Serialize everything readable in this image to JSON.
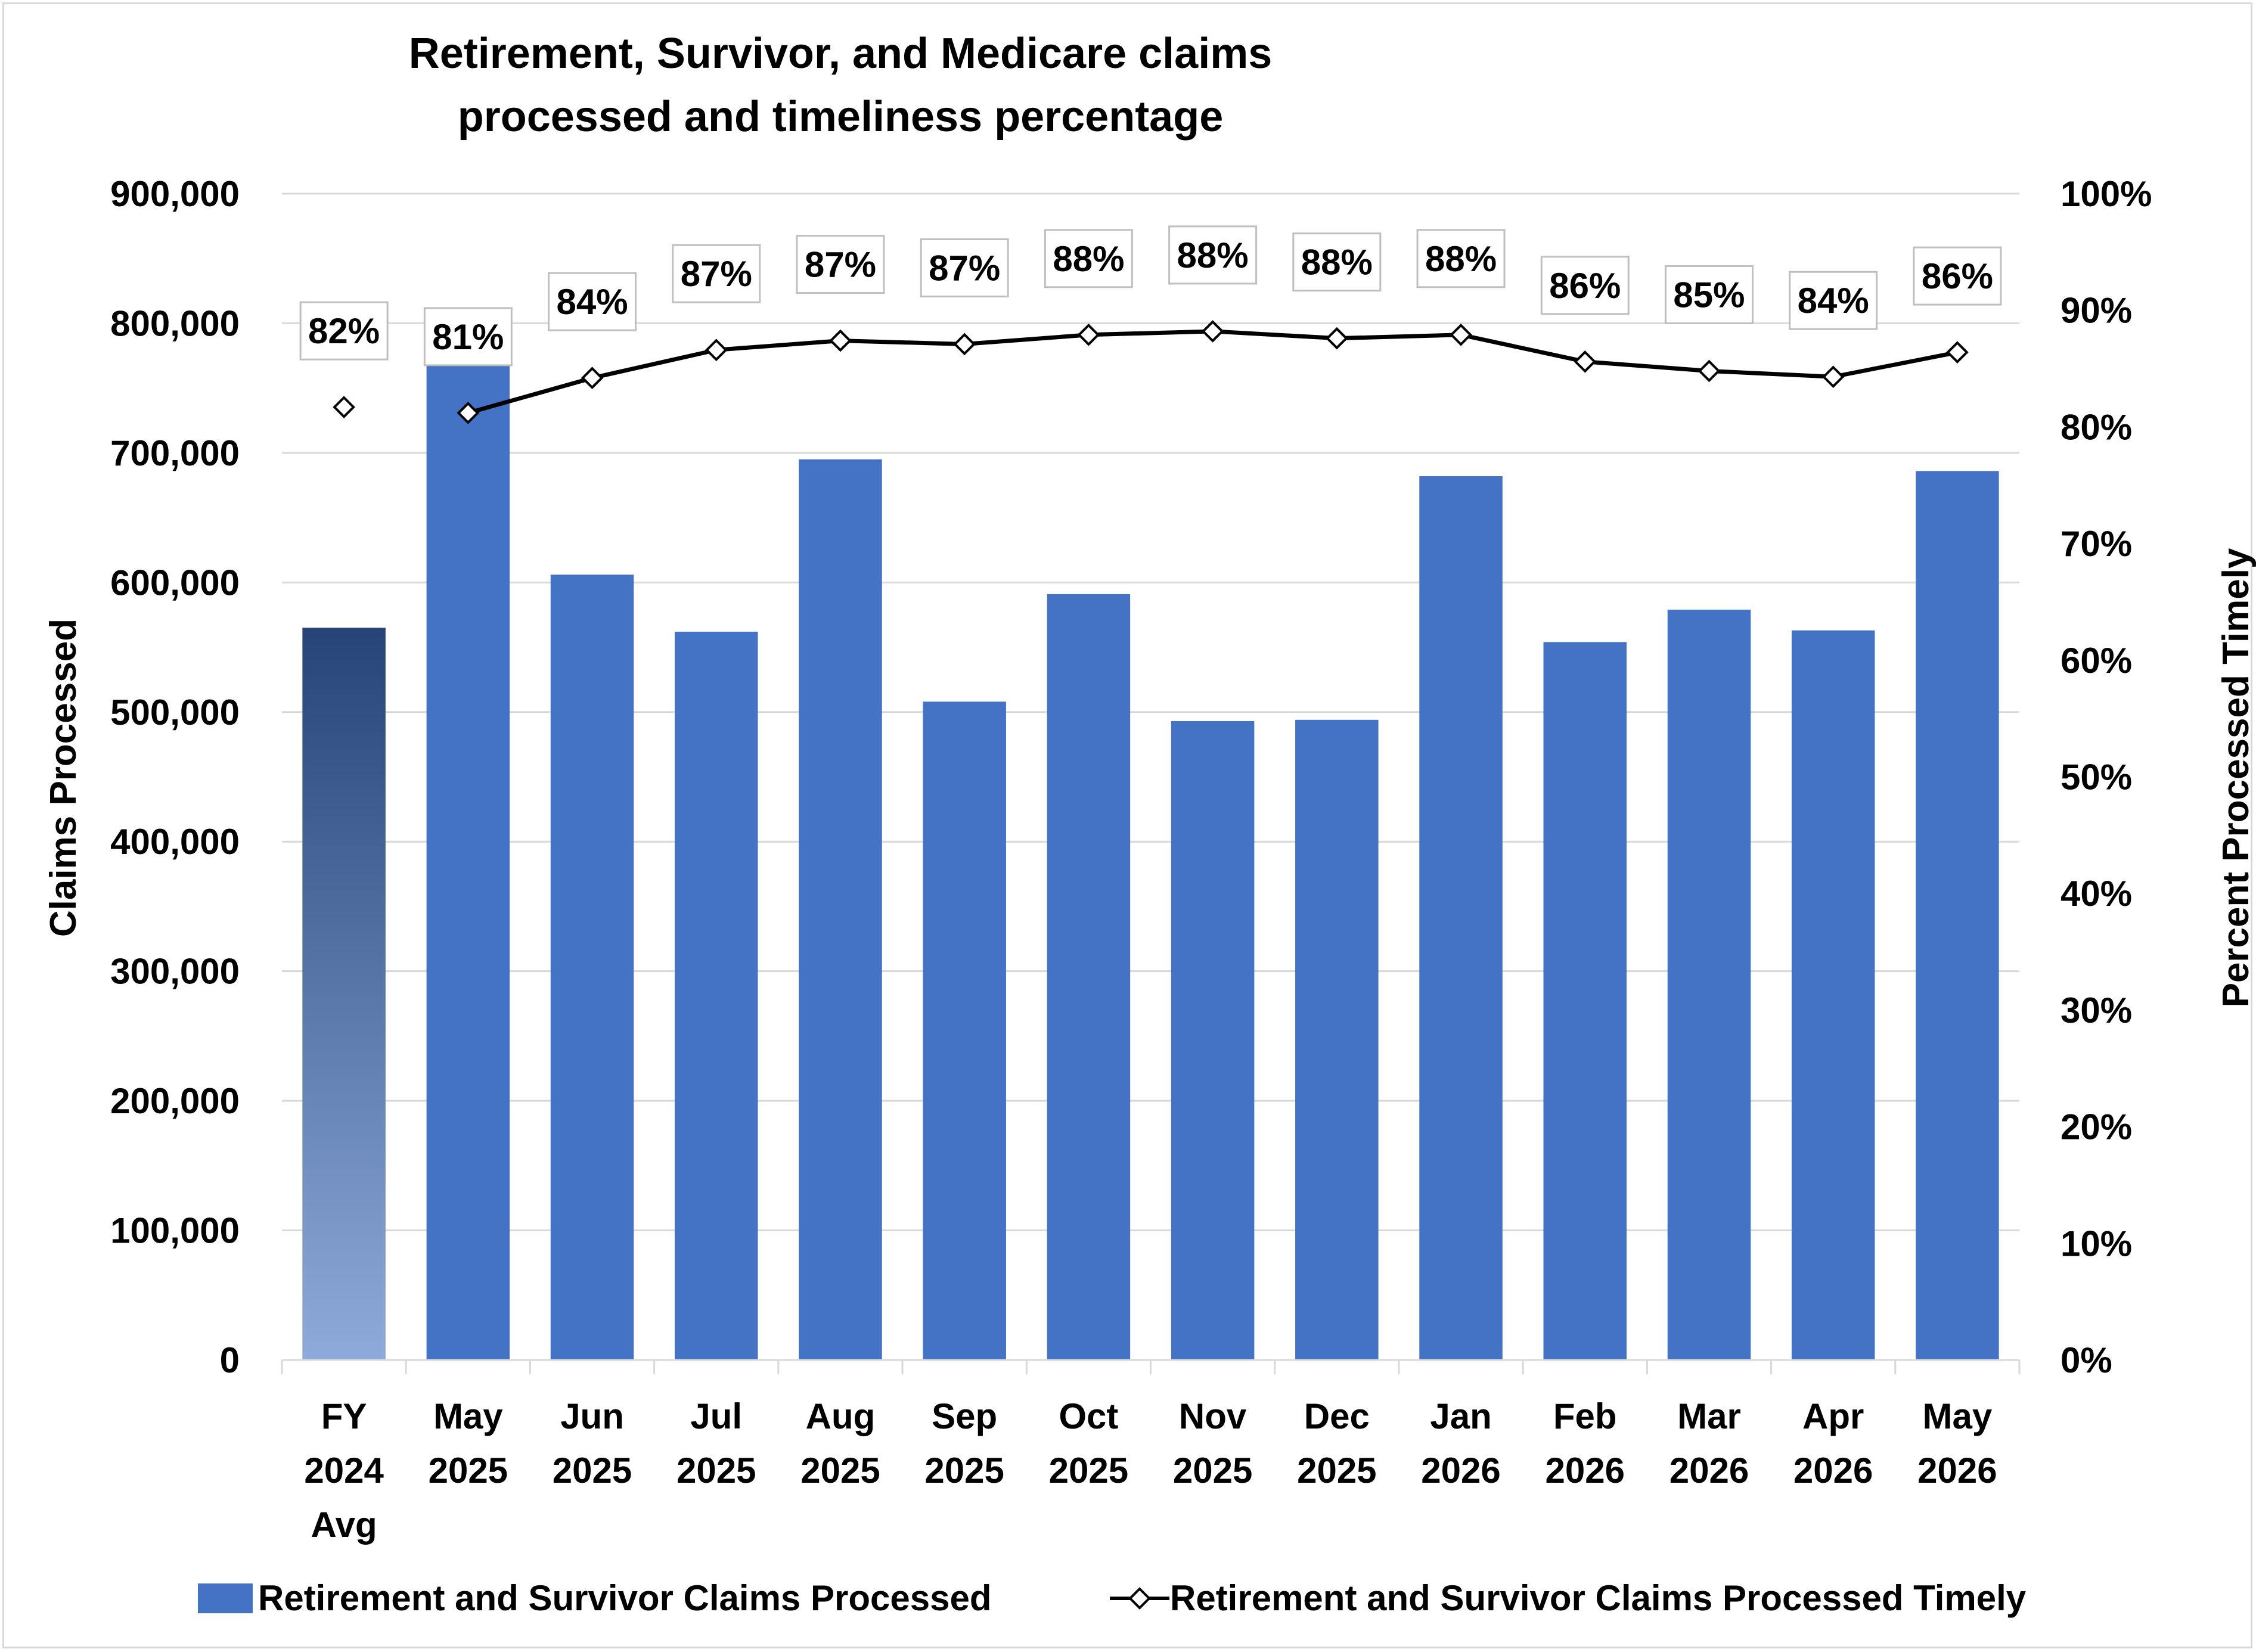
{
  "chart_data": {
    "type": "bar",
    "title": [
      "Retirement, Survivor, and Medicare claims",
      "processed and timeliness percentage"
    ],
    "categories": [
      [
        "FY",
        "2024",
        "Avg"
      ],
      [
        "May",
        "2025"
      ],
      [
        "Jun",
        "2025"
      ],
      [
        "Jul",
        "2025"
      ],
      [
        "Aug",
        "2025"
      ],
      [
        "Sep",
        "2025"
      ],
      [
        "Oct",
        "2025"
      ],
      [
        "Nov",
        "2025"
      ],
      [
        "Dec",
        "2025"
      ],
      [
        "Jan",
        "2026"
      ],
      [
        "Feb",
        "2026"
      ],
      [
        "Mar",
        "2026"
      ],
      [
        "Apr",
        "2026"
      ],
      [
        "May",
        "2026"
      ]
    ],
    "ylabel": "Claims Processed",
    "y2label": "Percent Processed Timely",
    "ylim": [
      0,
      900000
    ],
    "y2lim": [
      0,
      100
    ],
    "yticks": [
      "0",
      "100,000",
      "200,000",
      "300,000",
      "400,000",
      "500,000",
      "600,000",
      "700,000",
      "800,000",
      "900,000"
    ],
    "y2ticks": [
      "0%",
      "10%",
      "20%",
      "30%",
      "40%",
      "50%",
      "60%",
      "70%",
      "80%",
      "90%",
      "100%"
    ],
    "grid": true,
    "legend_position": "bottom",
    "series": [
      {
        "name": "Retirement and Survivor Claims Processed",
        "type": "bar",
        "axis": "left",
        "color": "#4472c4",
        "highlight_first": true,
        "highlight_colors": [
          "#264478",
          "#8eaadb"
        ],
        "values": [
          565000,
          803000,
          606000,
          562000,
          695000,
          508000,
          591000,
          493000,
          494000,
          682000,
          554000,
          579000,
          563000,
          686000
        ]
      },
      {
        "name": "Retirement and Survivor Claims Processed Timely",
        "type": "line",
        "axis": "right",
        "color": "#000000",
        "marker": "diamond",
        "connect_from_index": 1,
        "values": [
          81.7,
          81.2,
          84.2,
          86.6,
          87.4,
          87.1,
          87.9,
          88.2,
          87.6,
          87.9,
          85.6,
          84.8,
          84.3,
          86.4
        ],
        "labels": [
          "82%",
          "81%",
          "84%",
          "87%",
          "87%",
          "87%",
          "88%",
          "88%",
          "88%",
          "88%",
          "86%",
          "85%",
          "84%",
          "86%"
        ]
      }
    ]
  }
}
